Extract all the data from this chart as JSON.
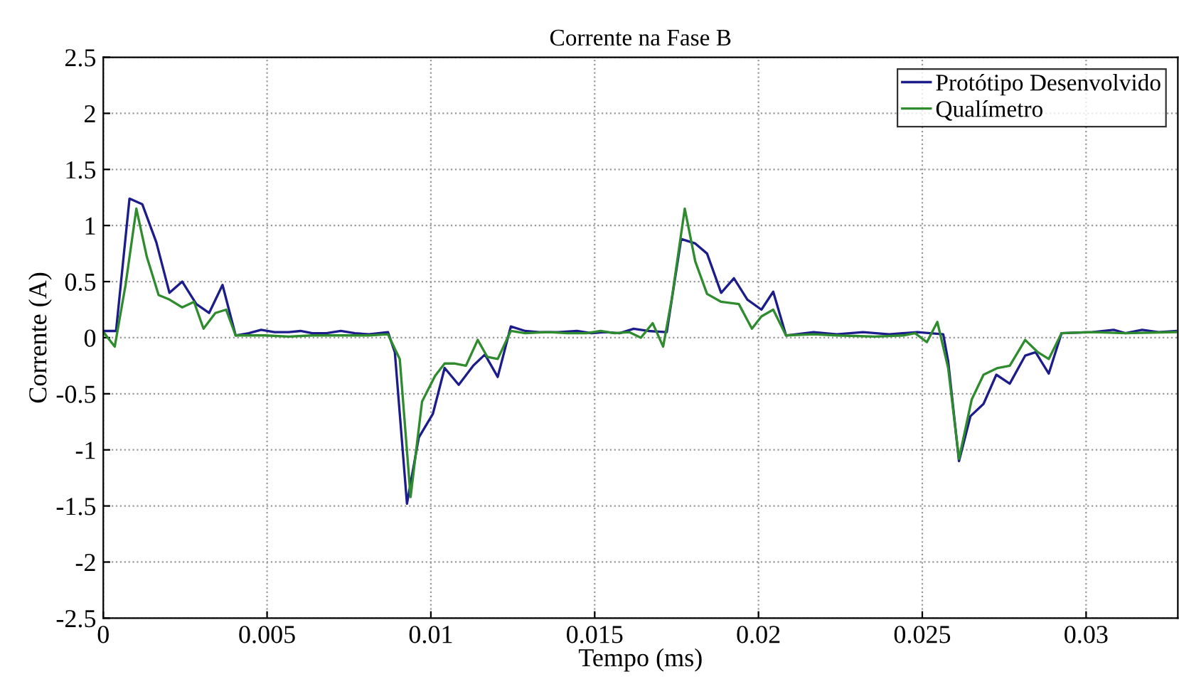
{
  "chart_data": {
    "type": "line",
    "title": "Corrente na Fase B",
    "xlabel": "Tempo (ms)",
    "ylabel": "Corrente (A)",
    "xlim": [
      0,
      0.0328
    ],
    "xticks": [
      0,
      0.005,
      0.01,
      0.015,
      0.02,
      0.025,
      0.03
    ],
    "ylim": [
      -2.5,
      2.5
    ],
    "yticks": [
      {
        "value": -2.5,
        "label": "-2.5"
      },
      {
        "value": -2,
        "label": "-2"
      },
      {
        "value": -1.5,
        "label": "-1.5"
      },
      {
        "value": -1,
        "label": "-1"
      },
      {
        "value": -0.5,
        "label": "-0.5"
      },
      0,
      0.5,
      1,
      1.5,
      2,
      2.5
    ],
    "grid": true,
    "legend": "top right",
    "line_style": "solid",
    "marker": "none",
    "series": [
      {
        "name": "Protótipo Desenvolvido",
        "color": "#1c1c8a",
        "x": [
          3e-05,
          0.00039,
          0.0008,
          0.00119,
          0.00162,
          0.00202,
          0.00241,
          0.00284,
          0.00323,
          0.00364,
          0.00404,
          0.00444,
          0.00482,
          0.00523,
          0.00566,
          0.00602,
          0.00638,
          0.00681,
          0.00725,
          0.00768,
          0.00811,
          0.00869,
          0.0089,
          0.00927,
          0.00963,
          0.01006,
          0.01042,
          0.01085,
          0.01129,
          0.01165,
          0.01204,
          0.01244,
          0.01288,
          0.01331,
          0.01388,
          0.01446,
          0.0149,
          0.01533,
          0.01576,
          0.01619,
          0.01663,
          0.0172,
          0.01764,
          0.01807,
          0.01843,
          0.01886,
          0.01925,
          0.01966,
          0.02009,
          0.02045,
          0.02084,
          0.02168,
          0.02239,
          0.02319,
          0.02399,
          0.02485,
          0.02564,
          0.02579,
          0.02612,
          0.02647,
          0.02687,
          0.02726,
          0.02767,
          0.02814,
          0.02846,
          0.02886,
          0.02925,
          0.03019,
          0.03084,
          0.0312,
          0.03171,
          0.03221,
          0.03274
        ],
        "values": [
          0.06,
          0.06,
          1.24,
          1.19,
          0.85,
          0.4,
          0.5,
          0.3,
          0.22,
          0.47,
          0.02,
          0.04,
          0.07,
          0.05,
          0.05,
          0.06,
          0.04,
          0.04,
          0.06,
          0.04,
          0.03,
          0.05,
          -0.13,
          -1.48,
          -0.89,
          -0.68,
          -0.27,
          -0.42,
          -0.25,
          -0.15,
          -0.35,
          0.1,
          0.06,
          0.05,
          0.05,
          0.06,
          0.04,
          0.05,
          0.04,
          0.08,
          0.06,
          0.05,
          0.88,
          0.84,
          0.75,
          0.4,
          0.53,
          0.34,
          0.25,
          0.41,
          0.02,
          0.05,
          0.03,
          0.05,
          0.03,
          0.05,
          0.03,
          -0.21,
          -1.1,
          -0.7,
          -0.59,
          -0.33,
          -0.41,
          -0.16,
          -0.13,
          -0.32,
          0.04,
          0.05,
          0.07,
          0.04,
          0.07,
          0.05,
          0.06
        ]
      },
      {
        "name": "Qualímetro",
        "color": "#2e8b2e",
        "x": [
          3e-05,
          0.00035,
          0.00068,
          0.00101,
          0.00133,
          0.00169,
          0.00202,
          0.00241,
          0.00277,
          0.00306,
          0.00342,
          0.00375,
          0.00404,
          0.00444,
          0.00494,
          0.00566,
          0.00638,
          0.00725,
          0.00811,
          0.00869,
          0.00905,
          0.00938,
          0.00973,
          0.01013,
          0.01042,
          0.01071,
          0.01107,
          0.01143,
          0.01172,
          0.01204,
          0.01244,
          0.01288,
          0.0136,
          0.01417,
          0.01475,
          0.01518,
          0.01561,
          0.01605,
          0.01641,
          0.01677,
          0.01709,
          0.01735,
          0.01775,
          0.01807,
          0.01843,
          0.01886,
          0.0194,
          0.0198,
          0.02009,
          0.02045,
          0.02084,
          0.02168,
          0.02239,
          0.02355,
          0.02442,
          0.02478,
          0.02514,
          0.02546,
          0.02579,
          0.02612,
          0.02651,
          0.02687,
          0.0273,
          0.02767,
          0.02814,
          0.02853,
          0.02886,
          0.02925,
          0.03019,
          0.0312,
          0.03274
        ],
        "values": [
          0.04,
          -0.08,
          0.47,
          1.15,
          0.72,
          0.38,
          0.34,
          0.27,
          0.32,
          0.08,
          0.22,
          0.25,
          0.02,
          0.02,
          0.02,
          0.01,
          0.02,
          0.02,
          0.02,
          0.03,
          -0.19,
          -1.42,
          -0.57,
          -0.34,
          -0.23,
          -0.23,
          -0.25,
          -0.02,
          -0.17,
          -0.19,
          0.06,
          0.04,
          0.05,
          0.04,
          0.04,
          0.06,
          0.04,
          0.05,
          0.0,
          0.13,
          -0.08,
          0.34,
          1.15,
          0.68,
          0.39,
          0.32,
          0.3,
          0.08,
          0.19,
          0.25,
          0.02,
          0.03,
          0.02,
          0.01,
          0.02,
          0.04,
          -0.04,
          0.14,
          -0.27,
          -1.08,
          -0.55,
          -0.33,
          -0.27,
          -0.25,
          -0.02,
          -0.13,
          -0.19,
          0.04,
          0.05,
          0.04,
          0.05
        ]
      }
    ]
  }
}
